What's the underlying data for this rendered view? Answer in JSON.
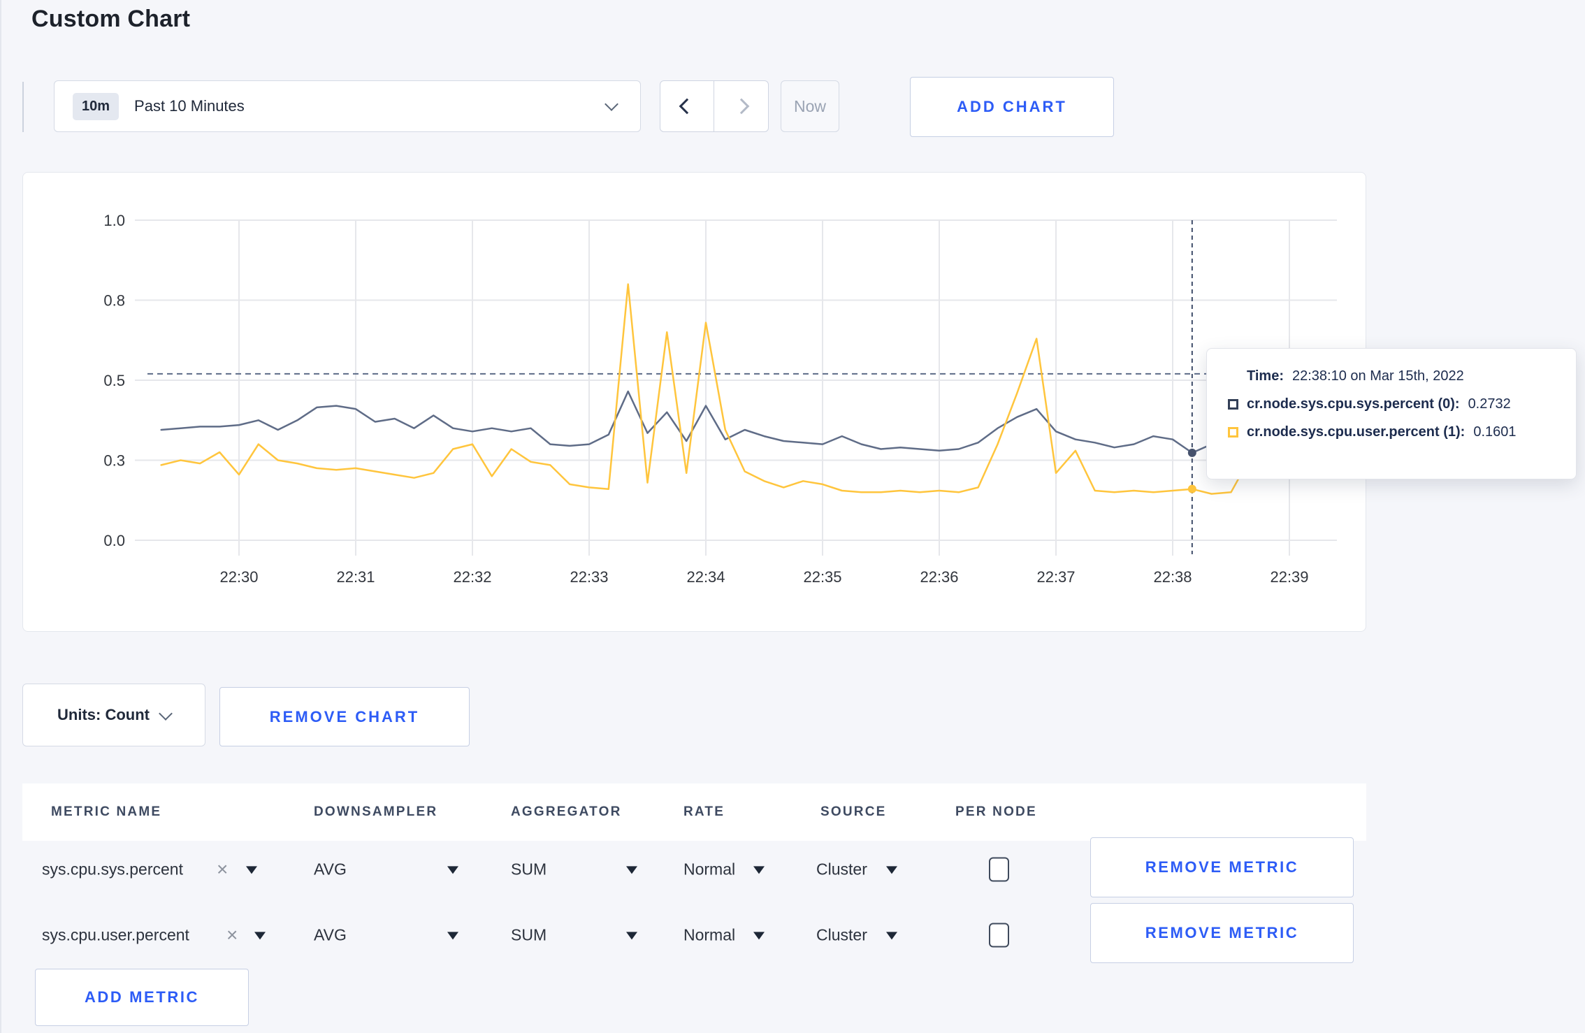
{
  "page": {
    "title": "Custom Chart"
  },
  "colors": {
    "accent_blue": "#2d5cf6",
    "series_sys": "#5f6c87",
    "series_user": "#ffc53d",
    "crosshair": "#3f4d6a"
  },
  "toolbar": {
    "time_range": {
      "badge": "10m",
      "label": "Past 10 Minutes"
    },
    "now_label": "Now",
    "add_chart_label": "ADD CHART"
  },
  "chart_controls": {
    "units_label": "Units: Count",
    "remove_chart_label": "REMOVE CHART"
  },
  "tooltip": {
    "time_label": "Time:",
    "time_value": "22:38:10 on Mar 15th, 2022",
    "rows": [
      {
        "label": "cr.node.sys.cpu.sys.percent (0):",
        "value": "0.2732",
        "color": "#333f57"
      },
      {
        "label": "cr.node.sys.cpu.user.percent (1):",
        "value": "0.1601",
        "color": "#ffc53d"
      }
    ]
  },
  "metrics_table": {
    "columns": [
      "METRIC NAME",
      "DOWNSAMPLER",
      "AGGREGATOR",
      "RATE",
      "SOURCE",
      "PER NODE"
    ],
    "rows": [
      {
        "metric": "sys.cpu.sys.percent",
        "downsampler": "AVG",
        "aggregator": "SUM",
        "rate": "Normal",
        "source": "Cluster",
        "per_node_checked": false,
        "remove_label": "REMOVE METRIC"
      },
      {
        "metric": "sys.cpu.user.percent",
        "downsampler": "AVG",
        "aggregator": "SUM",
        "rate": "Normal",
        "source": "Cluster",
        "per_node_checked": false,
        "remove_label": "REMOVE METRIC"
      }
    ],
    "add_metric_label": "ADD METRIC"
  },
  "chart_data": {
    "type": "line",
    "title": "",
    "xlabel": "",
    "ylabel": "",
    "grid": true,
    "legend_position": "tooltip",
    "x_axis": {
      "tick_labels": [
        "22:30",
        "22:31",
        "22:32",
        "22:33",
        "22:34",
        "22:35",
        "22:36",
        "22:37",
        "22:38",
        "22:39"
      ],
      "tick_minutes": [
        0,
        1,
        2,
        3,
        4,
        5,
        6,
        7,
        8,
        9
      ],
      "x_start_min": -0.6667,
      "x_step_min": 0.16667
    },
    "y_axis": {
      "tick_labels": [
        "0.0",
        "0.3",
        "0.5",
        "0.8",
        "1.0"
      ],
      "tick_positions": [
        0,
        0.25,
        0.5,
        0.75,
        1.0
      ],
      "range": [
        0,
        1
      ]
    },
    "series": [
      {
        "name": "cr.node.sys.cpu.sys.percent",
        "color": "#5f6c87",
        "values": [
          0.345,
          0.35,
          0.355,
          0.355,
          0.36,
          0.375,
          0.345,
          0.375,
          0.415,
          0.42,
          0.41,
          0.37,
          0.38,
          0.35,
          0.39,
          0.35,
          0.34,
          0.35,
          0.34,
          0.35,
          0.3,
          0.295,
          0.3,
          0.33,
          0.465,
          0.335,
          0.4,
          0.31,
          0.42,
          0.315,
          0.345,
          0.325,
          0.31,
          0.305,
          0.3,
          0.325,
          0.3,
          0.285,
          0.29,
          0.285,
          0.28,
          0.285,
          0.305,
          0.35,
          0.385,
          0.41,
          0.34,
          0.315,
          0.305,
          0.29,
          0.3,
          0.325,
          0.315,
          0.2732,
          0.3,
          0.305,
          0.3,
          0.295,
          0.3
        ]
      },
      {
        "name": "cr.node.sys.cpu.user.percent",
        "color": "#ffc53d",
        "values": [
          0.235,
          0.25,
          0.24,
          0.275,
          0.205,
          0.3,
          0.25,
          0.24,
          0.225,
          0.22,
          0.225,
          0.215,
          0.205,
          0.195,
          0.21,
          0.285,
          0.3,
          0.2,
          0.285,
          0.245,
          0.235,
          0.175,
          0.165,
          0.16,
          0.8,
          0.18,
          0.65,
          0.21,
          0.68,
          0.345,
          0.215,
          0.185,
          0.165,
          0.185,
          0.175,
          0.155,
          0.15,
          0.15,
          0.155,
          0.15,
          0.155,
          0.15,
          0.165,
          0.3,
          0.46,
          0.63,
          0.21,
          0.28,
          0.155,
          0.15,
          0.155,
          0.15,
          0.155,
          0.1601,
          0.145,
          0.15,
          0.26,
          0.265,
          0.225
        ]
      }
    ],
    "crosshair": {
      "time_label": "22:38:10",
      "time_min": 8.1667,
      "hline_value": 0.52,
      "points": [
        {
          "series": 0,
          "value": 0.2732
        },
        {
          "series": 1,
          "value": 0.1601
        }
      ]
    }
  }
}
